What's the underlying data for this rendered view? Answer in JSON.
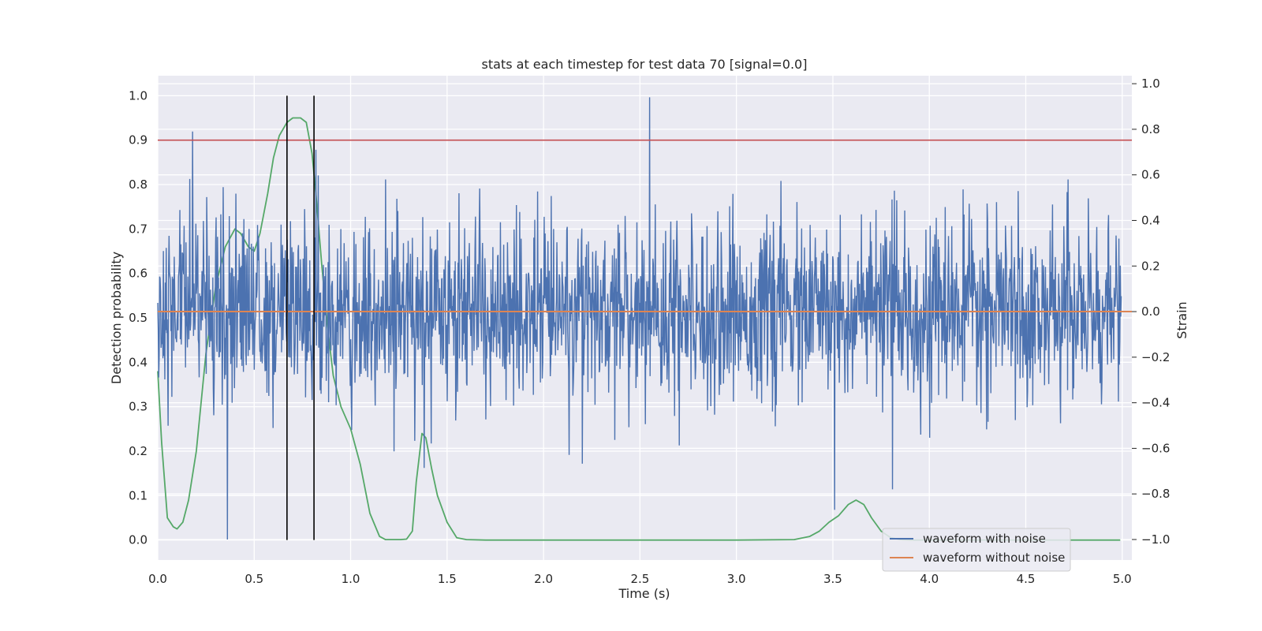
{
  "chart_data": {
    "type": "line",
    "title": "stats at each timestep for test data 70 [signal=0.0]",
    "xlabel": "Time (s)",
    "ylabel": "Detection probability",
    "y2label": "Strain",
    "xlim": [
      0.0,
      5.05
    ],
    "ylim": [
      -0.045,
      1.045
    ],
    "y2lim": [
      -1.09,
      1.035
    ],
    "xticks": [
      "0.0",
      "0.5",
      "1.0",
      "1.5",
      "2.0",
      "2.5",
      "3.0",
      "3.5",
      "4.0",
      "4.5",
      "5.0"
    ],
    "yticks": [
      "0.0",
      "0.1",
      "0.2",
      "0.3",
      "0.4",
      "0.5",
      "0.6",
      "0.7",
      "0.8",
      "0.9",
      "1.0"
    ],
    "y2ticks": [
      "−1.0",
      "−0.8",
      "−0.6",
      "−0.4",
      "−0.2",
      "0.0",
      "0.2",
      "0.4",
      "0.6",
      "0.8",
      "1.0"
    ],
    "grid": true,
    "legend_position": "lower-right",
    "threshold": {
      "y": 0.9,
      "color": "#c44e52"
    },
    "vertical_markers": {
      "x": [
        0.67,
        0.81
      ],
      "y_range": [
        0.0,
        1.0
      ],
      "color": "#000000"
    },
    "detection_probability": {
      "color": "#55a868",
      "x": [
        0.0,
        0.02,
        0.05,
        0.08,
        0.1,
        0.13,
        0.16,
        0.2,
        0.25,
        0.3,
        0.35,
        0.4,
        0.43,
        0.47,
        0.5,
        0.53,
        0.57,
        0.6,
        0.63,
        0.67,
        0.7,
        0.74,
        0.77,
        0.8,
        0.82,
        0.85,
        0.88,
        0.91,
        0.95,
        1.0,
        1.05,
        1.1,
        1.15,
        1.18,
        1.22,
        1.26,
        1.29,
        1.32,
        1.34,
        1.37,
        1.39,
        1.42,
        1.45,
        1.5,
        1.55,
        1.6,
        1.7,
        2.0,
        2.5,
        3.0,
        3.3,
        3.38,
        3.43,
        3.48,
        3.53,
        3.58,
        3.62,
        3.66,
        3.7,
        3.75,
        3.8,
        3.85,
        3.9,
        4.0,
        4.5,
        4.99
      ],
      "y": [
        0.38,
        0.22,
        0.05,
        0.03,
        0.025,
        0.04,
        0.09,
        0.2,
        0.42,
        0.57,
        0.66,
        0.7,
        0.69,
        0.66,
        0.65,
        0.69,
        0.78,
        0.86,
        0.91,
        0.94,
        0.95,
        0.95,
        0.94,
        0.87,
        0.78,
        0.62,
        0.48,
        0.37,
        0.3,
        0.25,
        0.17,
        0.06,
        0.008,
        0.001,
        0.001,
        0.001,
        0.002,
        0.02,
        0.13,
        0.24,
        0.23,
        0.16,
        0.1,
        0.04,
        0.005,
        0.001,
        0.0,
        0.0,
        0.0,
        0.0,
        0.001,
        0.008,
        0.02,
        0.04,
        0.055,
        0.08,
        0.09,
        0.08,
        0.05,
        0.02,
        0.005,
        0.001,
        0.0,
        0.0,
        0.0,
        0.0
      ]
    },
    "series": [
      {
        "name": "waveform with noise",
        "color": "#4c72b0",
        "axis": "right",
        "samples": 2048,
        "x_range": [
          0.0,
          4.995
        ],
        "baseline": 0.0,
        "noise_sd": 0.19,
        "spikes": [
          [
            0.18,
            0.79
          ],
          [
            0.36,
            -1.0
          ],
          [
            0.82,
            0.71
          ],
          [
            2.55,
            0.94
          ],
          [
            3.51,
            -0.87
          ],
          [
            3.81,
            -0.78
          ],
          [
            4.72,
            0.58
          ],
          [
            1.18,
            0.58
          ],
          [
            1.67,
            0.54
          ]
        ]
      },
      {
        "name": "waveform without noise",
        "color": "#dd8452",
        "axis": "right",
        "samples": 2,
        "x_range": [
          0.0,
          5.0
        ],
        "constant": 0.0
      }
    ]
  }
}
